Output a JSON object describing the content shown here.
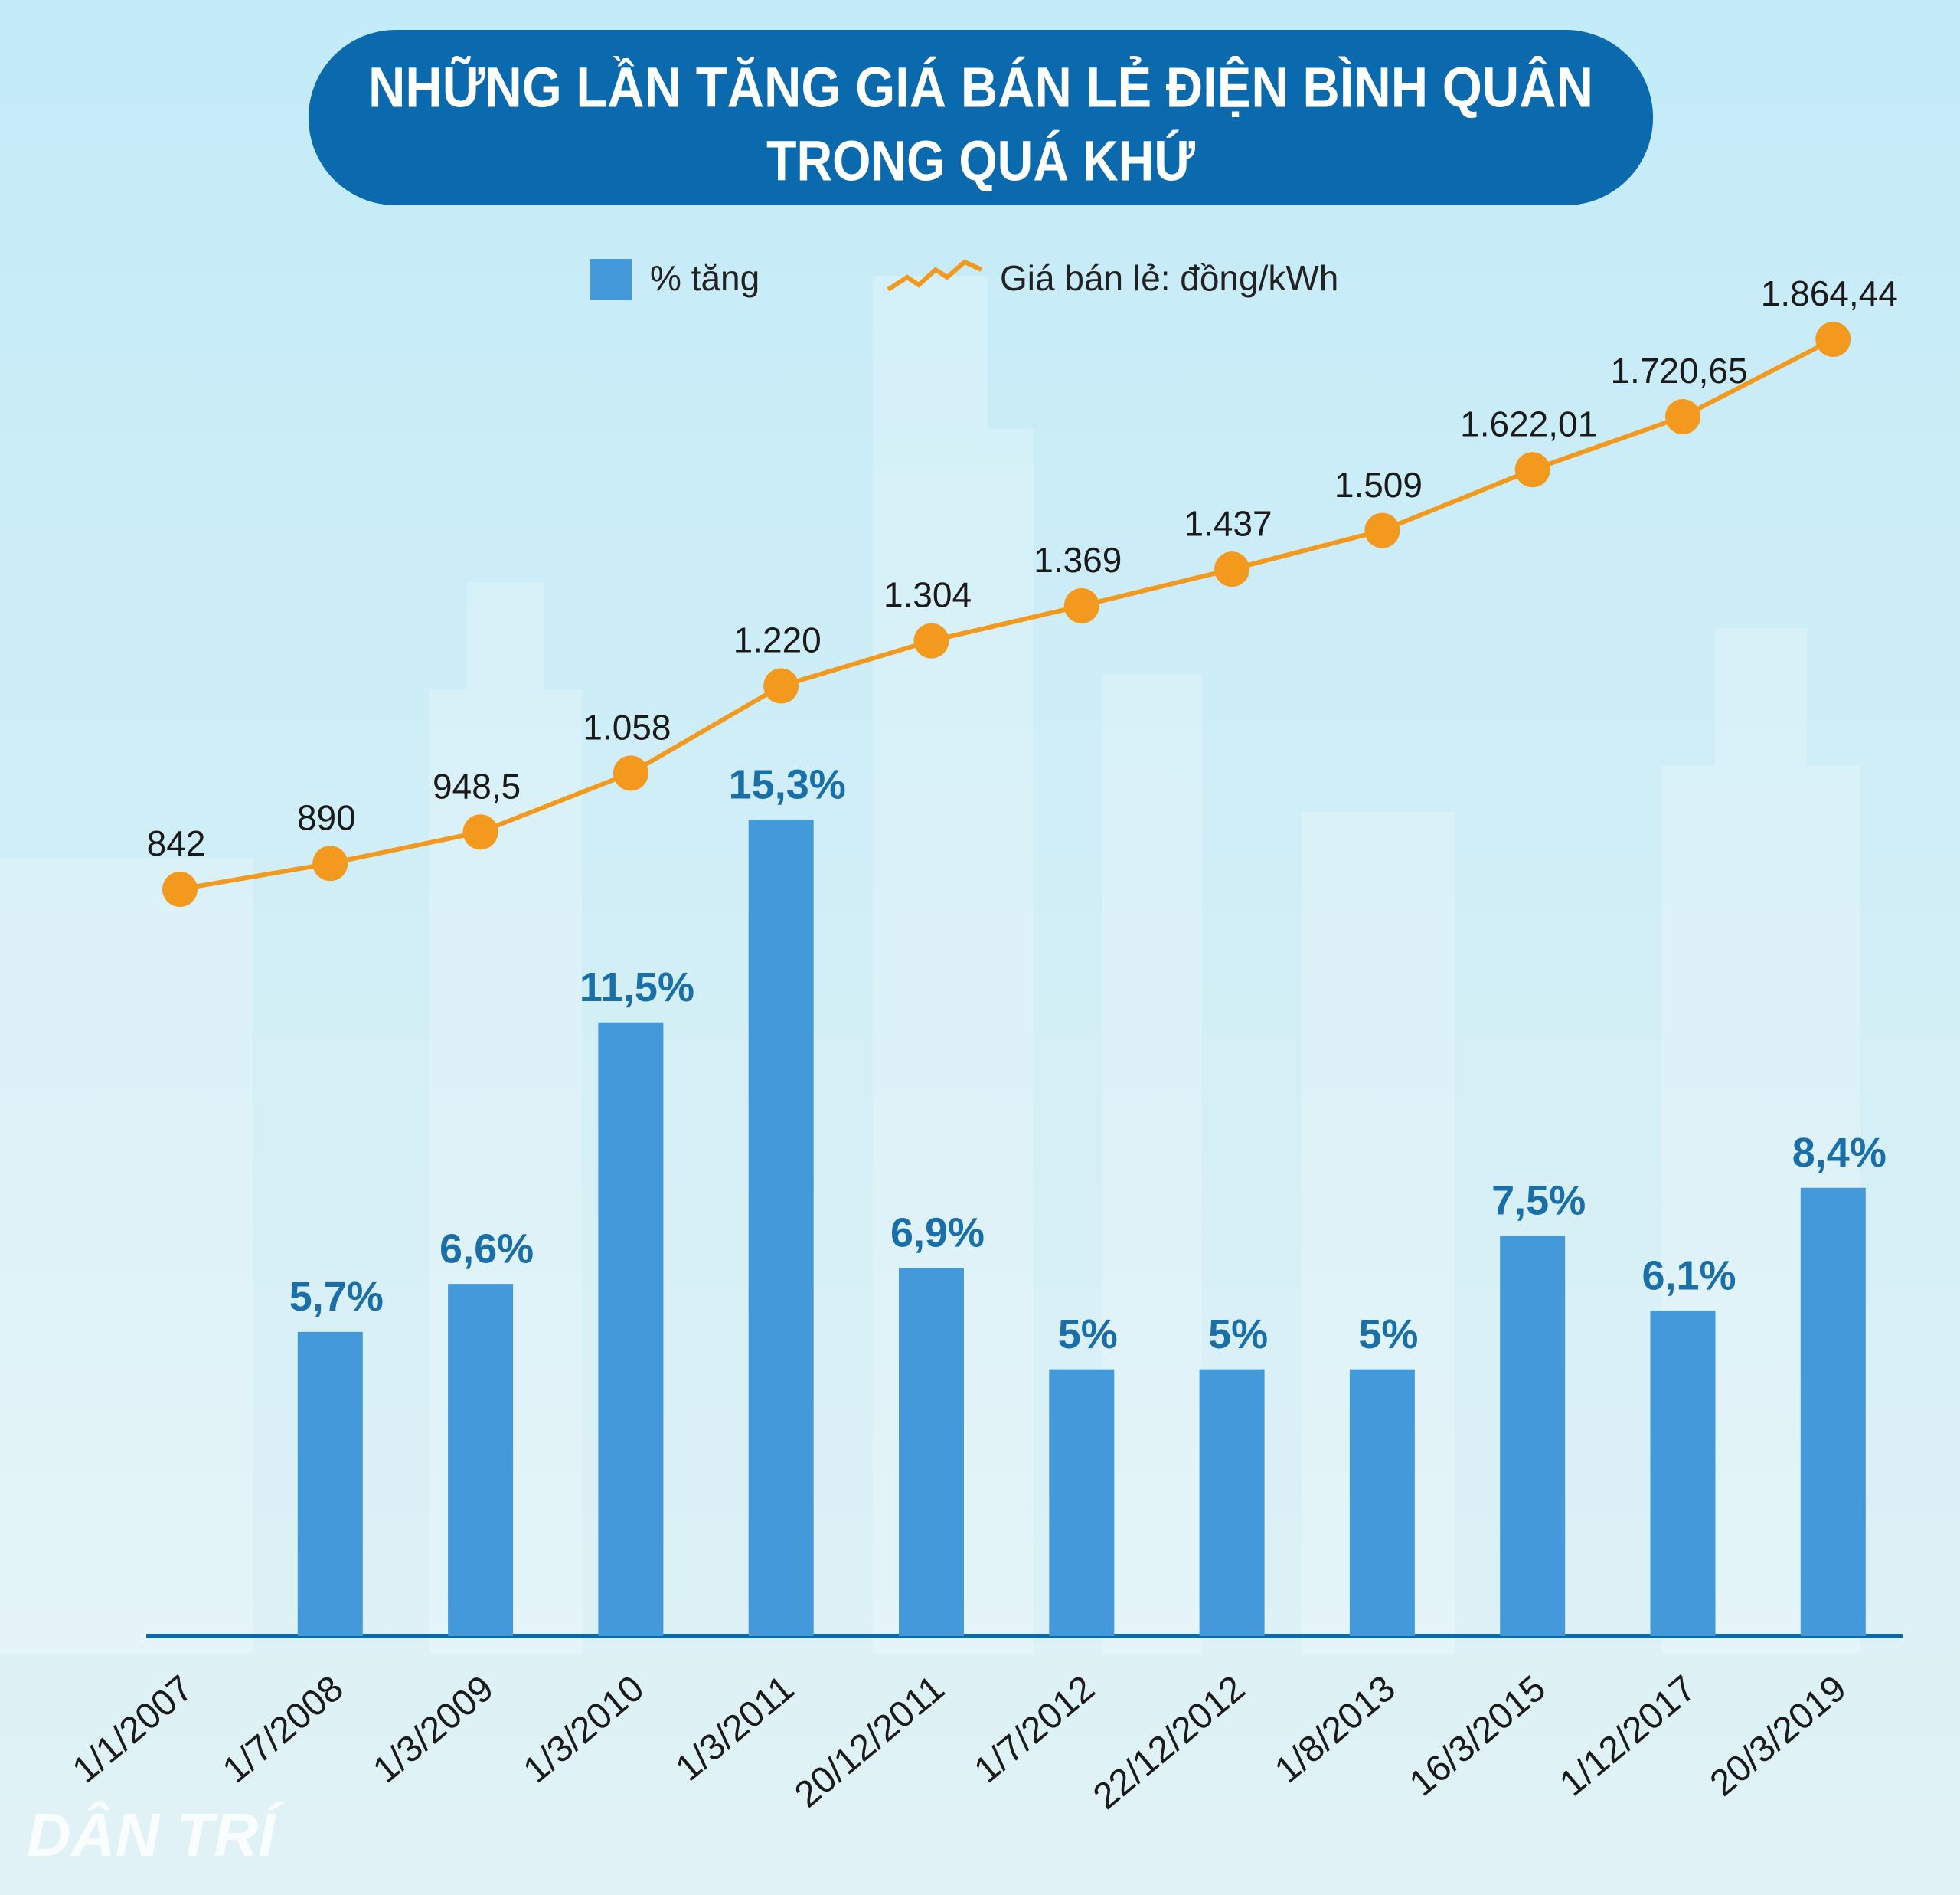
{
  "chart_data": {
    "type": "combo",
    "title": [
      "NHỮNG LẦN TĂNG GIÁ BÁN LẺ ĐIỆN BÌNH QUÂN",
      "TRONG QUÁ KHỨ"
    ],
    "watermark": "DÂN TRÍ",
    "categories": [
      "1/1/2007",
      "1/7/2008",
      "1/3/2009",
      "1/3/2010",
      "1/3/2011",
      "20/12/2011",
      "1/7/2012",
      "22/12/2012",
      "1/8/2013",
      "16/3/2015",
      "1/12/2017",
      "20/3/2019"
    ],
    "series": [
      {
        "name": "% tăng",
        "type": "bar",
        "color": "#4499db",
        "label_color": "#1b6fa8",
        "values": [
          null,
          5.7,
          6.6,
          11.5,
          15.3,
          6.9,
          5,
          5,
          5,
          7.5,
          6.1,
          8.4
        ],
        "value_labels": [
          null,
          "5,7%",
          "6,6%",
          "11,5%",
          "15,3%",
          "6,9%",
          "5%",
          "5%",
          "5%",
          "7,5%",
          "6,1%",
          "8,4%"
        ]
      },
      {
        "name": "Giá bán lẻ: đồng/kWh",
        "type": "line",
        "color": "#f39a1e",
        "axis": "y2",
        "values": [
          842,
          890,
          948.5,
          1058,
          1220,
          1304,
          1369,
          1437,
          1509,
          1622.01,
          1720.65,
          1864.44
        ],
        "value_labels": [
          "842",
          "890",
          "948,5",
          "1.058",
          "1.220",
          "1.304",
          "1.369",
          "1.437",
          "1.509",
          "1.622,01",
          "1.720,65",
          "1.864,44"
        ]
      }
    ]
  }
}
